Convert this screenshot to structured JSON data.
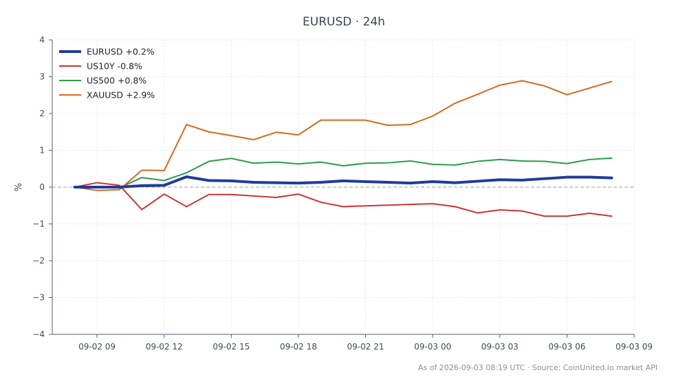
{
  "chart_data": {
    "type": "line",
    "title": "EURUSD · 24h",
    "ylabel": "%",
    "xlabel": "",
    "ylim": [
      -4,
      4
    ],
    "yticks": [
      -4,
      -3,
      -2,
      -1,
      0,
      1,
      2,
      3,
      4
    ],
    "ytick_labels": [
      "−4",
      "−3",
      "−2",
      "−1",
      "0",
      "1",
      "2",
      "3",
      "4"
    ],
    "x_start": "2026-09-02 08:00",
    "x_step_hours": 1,
    "xlim": [
      "2026-09-02 07:00",
      "2026-09-03 09:00"
    ],
    "xticks": [
      "2026-09-02 09:00",
      "2026-09-02 12:00",
      "2026-09-02 15:00",
      "2026-09-02 18:00",
      "2026-09-02 21:00",
      "2026-09-03 00:00",
      "2026-09-03 03:00",
      "2026-09-03 06:00",
      "2026-09-03 09:00"
    ],
    "xtick_labels": [
      "09-02 09",
      "09-02 12",
      "09-02 15",
      "09-02 18",
      "09-02 21",
      "09-03 00",
      "09-03 03",
      "09-03 06",
      "09-03 09"
    ],
    "x": [
      "2026-09-02 08:00",
      "2026-09-02 09:00",
      "2026-09-02 10:00",
      "2026-09-02 11:00",
      "2026-09-02 12:00",
      "2026-09-02 13:00",
      "2026-09-02 14:00",
      "2026-09-02 15:00",
      "2026-09-02 16:00",
      "2026-09-02 17:00",
      "2026-09-02 18:00",
      "2026-09-02 19:00",
      "2026-09-02 20:00",
      "2026-09-02 21:00",
      "2026-09-02 22:00",
      "2026-09-02 23:00",
      "2026-09-03 00:00",
      "2026-09-03 01:00",
      "2026-09-03 02:00",
      "2026-09-03 03:00",
      "2026-09-03 04:00",
      "2026-09-03 05:00",
      "2026-09-03 06:00",
      "2026-09-03 07:00",
      "2026-09-03 08:00"
    ],
    "zero_line": true,
    "grid": true,
    "legend_position": "top-left",
    "series": [
      {
        "name": "EURUSD +0.2%",
        "color": "#1f3b9e",
        "emphasis": true,
        "values": [
          0.0,
          0.0,
          0.0,
          0.04,
          0.05,
          0.28,
          0.18,
          0.17,
          0.13,
          0.12,
          0.11,
          0.13,
          0.17,
          0.15,
          0.13,
          0.11,
          0.15,
          0.12,
          0.16,
          0.2,
          0.19,
          0.23,
          0.27,
          0.27,
          0.25
        ]
      },
      {
        "name": "US10Y -0.8%",
        "color": "#cc3333",
        "values": [
          0.0,
          0.12,
          0.05,
          -0.61,
          -0.19,
          -0.53,
          -0.2,
          -0.2,
          -0.24,
          -0.28,
          -0.19,
          -0.41,
          -0.53,
          -0.51,
          -0.49,
          -0.47,
          -0.45,
          -0.53,
          -0.7,
          -0.62,
          -0.65,
          -0.79,
          -0.79,
          -0.71,
          -0.79
        ]
      },
      {
        "name": "US500 +0.8%",
        "color": "#2a9d4a",
        "values": [
          0.0,
          -0.01,
          -0.02,
          0.26,
          0.18,
          0.39,
          0.7,
          0.78,
          0.65,
          0.68,
          0.63,
          0.68,
          0.58,
          0.65,
          0.66,
          0.71,
          0.62,
          0.6,
          0.7,
          0.75,
          0.71,
          0.7,
          0.64,
          0.75,
          0.79
        ]
      },
      {
        "name": "XAUUSD +2.9%",
        "color": "#d4691e",
        "values": [
          0.0,
          -0.09,
          -0.07,
          0.46,
          0.45,
          1.7,
          1.5,
          1.4,
          1.29,
          1.49,
          1.42,
          1.82,
          1.82,
          1.82,
          1.68,
          1.7,
          1.93,
          2.28,
          2.52,
          2.77,
          2.89,
          2.75,
          2.51,
          2.69,
          2.87
        ]
      }
    ],
    "footer": "As of 2026-09-03 08:19 UTC · Source: CoinUnited.io market API"
  }
}
